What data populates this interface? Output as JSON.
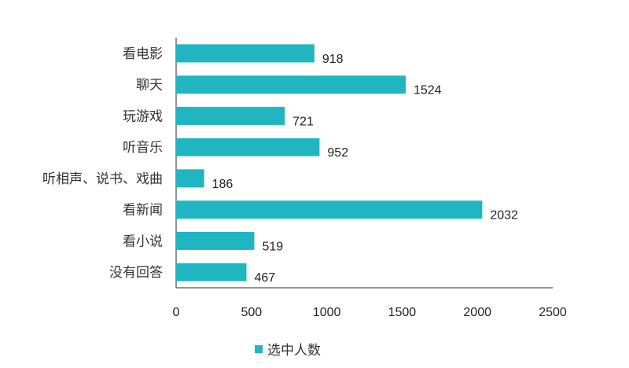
{
  "chart_data": {
    "type": "bar",
    "orientation": "horizontal",
    "categories": [
      "看电影",
      "聊天",
      "玩游戏",
      "听音乐",
      "听相声、说书、戏曲",
      "看新闻",
      "看小说",
      "没有回答"
    ],
    "series": [
      {
        "name": "选中人数",
        "values": [
          918,
          1524,
          721,
          952,
          186,
          2032,
          519,
          467
        ],
        "color": "#1fb5c1"
      }
    ],
    "xlim": [
      0,
      2500
    ],
    "xticks": [
      0,
      500,
      1000,
      1500,
      2000,
      2500
    ],
    "xtick_labels": [
      "0",
      "500",
      "1000",
      "1500",
      "2000",
      "2500"
    ],
    "grid": false,
    "legend_position": "bottom",
    "data_labels": true
  }
}
